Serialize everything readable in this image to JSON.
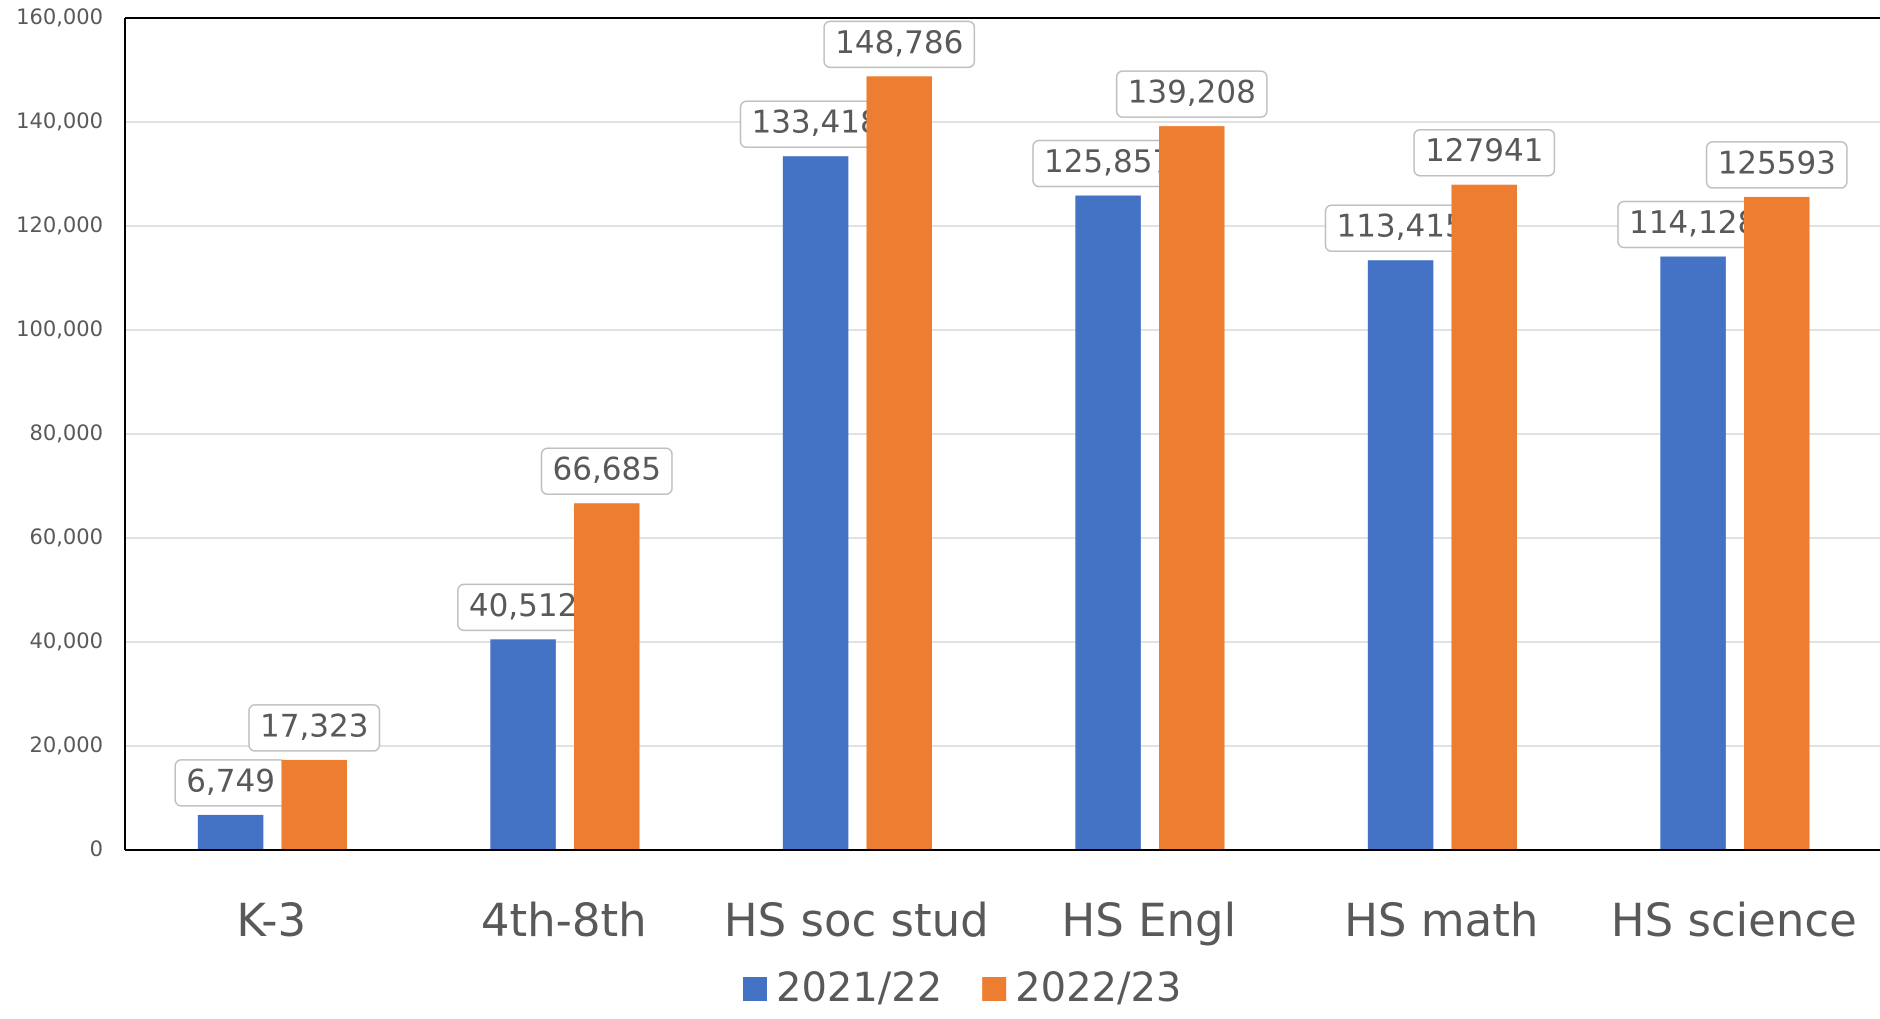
{
  "chart_data": {
    "type": "bar",
    "categories": [
      "K-3",
      "4th-8th",
      "HS soc stud",
      "HS Engl",
      "HS math",
      "HS science"
    ],
    "series": [
      {
        "name": "2021/22",
        "color": "#4472c4",
        "values": [
          6749,
          40512,
          133418,
          125857,
          113415,
          114128
        ],
        "value_labels": [
          "6,749",
          "40,512",
          "133,418",
          "125,857",
          "113,415",
          "114,128"
        ]
      },
      {
        "name": "2022/23",
        "color": "#ed7d31",
        "values": [
          17323,
          66685,
          148786,
          139208,
          127941,
          125593
        ],
        "value_labels": [
          "17,323",
          "66,685",
          "148,786",
          "139,208",
          "127941",
          "125593"
        ]
      }
    ],
    "ylim": [
      0,
      160000
    ],
    "yticks": [
      0,
      {
        "value": 20000,
        "label": "20,000"
      },
      {
        "value": 40000,
        "label": "40,000"
      },
      {
        "value": 60000,
        "label": "60,000"
      },
      {
        "value": 80000,
        "label": "80,000"
      },
      {
        "value": 100000,
        "label": "100,000"
      },
      {
        "value": 120000,
        "label": "120,000"
      },
      {
        "value": 140000,
        "label": "140,000"
      },
      {
        "value": 160000,
        "label": "160,000"
      }
    ],
    "grid": true,
    "legend": "bottom"
  }
}
